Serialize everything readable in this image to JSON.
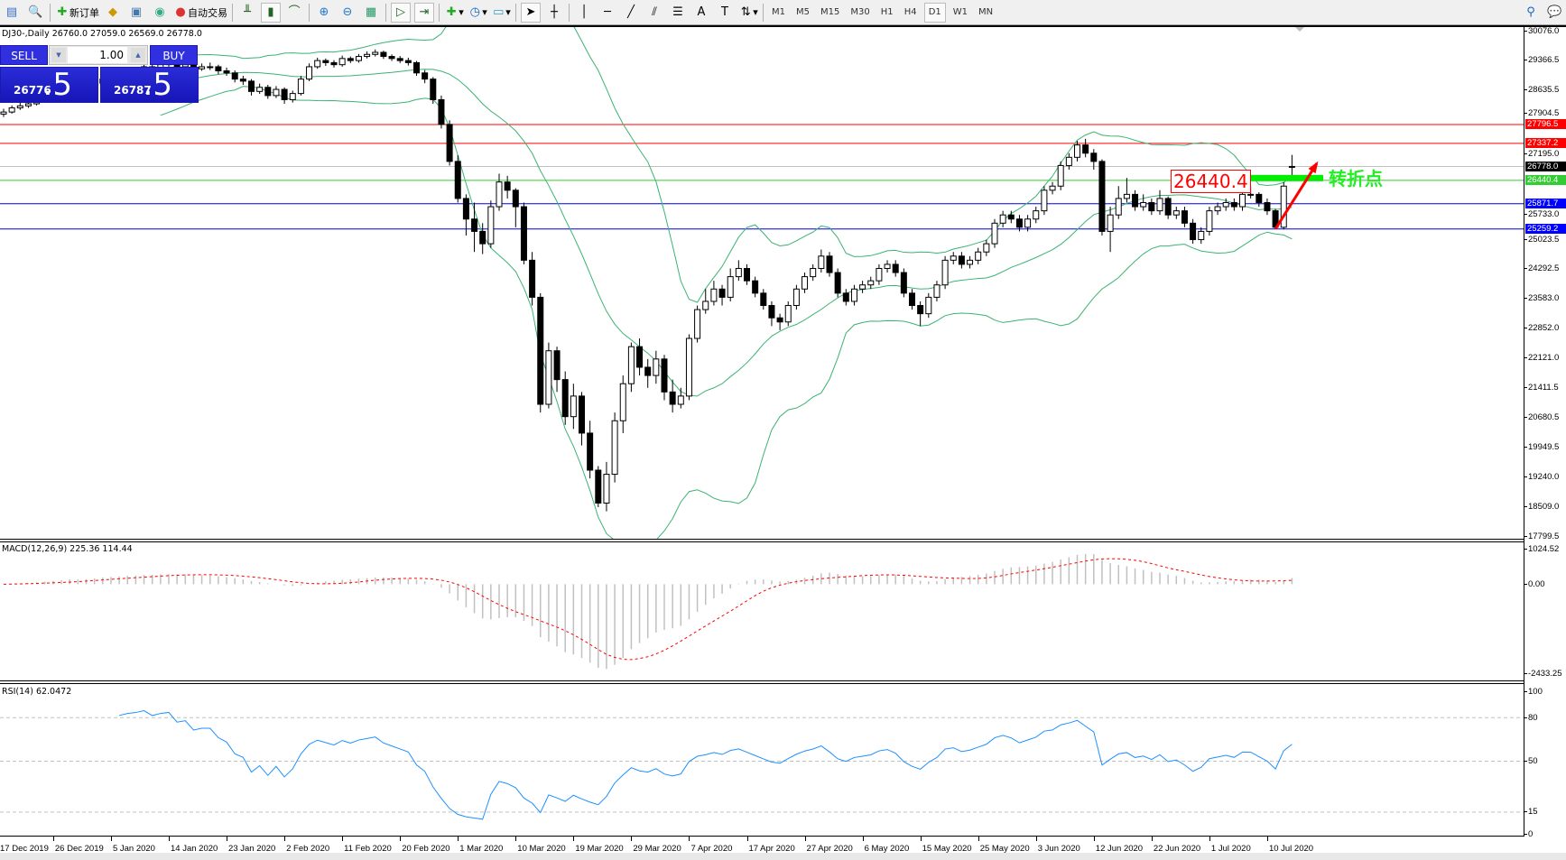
{
  "toolbar": {
    "new_order": "新订单",
    "auto_trading": "自动交易",
    "timeframes": [
      "M1",
      "M5",
      "M15",
      "M30",
      "H1",
      "H4",
      "D1",
      "W1",
      "MN"
    ],
    "active_timeframe": "D1"
  },
  "chart": {
    "title": "DJ30-,Daily  26760.0 27059.0 26569.0 26778.0",
    "one_click": {
      "sell_label": "SELL",
      "buy_label": "BUY",
      "lots": "1.00",
      "sell_price_main": "26776",
      "sell_price_frac": ".5",
      "buy_price_main": "26787",
      "buy_price_frac": ".5"
    },
    "annotation_price": "26440.4",
    "annotation_text": "转折点"
  },
  "colors": {
    "bollinger": "#3cb371",
    "resistance": "#ff0000",
    "support": "#0000dd",
    "pivot": "#33cc33",
    "bid": "#c0c0c0",
    "macd_hist": "#c0c0c0",
    "macd_signal": "#ff0000",
    "rsi": "#1e90ff",
    "arrow": "#ff0000",
    "pivot_bar": "#00ee00"
  },
  "chart_data": {
    "type": "candlestick",
    "symbol": "DJ30-",
    "period": "Daily",
    "ylim": [
      17799.5,
      30076.0
    ],
    "price_ticks": [
      "30076.0",
      "29366.5",
      "28635.5",
      "27904.5",
      "27195.0",
      "25733.0",
      "25023.5",
      "24292.5",
      "23583.0",
      "22852.0",
      "22121.0",
      "21411.5",
      "20680.5",
      "19949.5",
      "19240.0",
      "18509.0",
      "17799.5"
    ],
    "date_labels": [
      "17 Dec 2019",
      "26 Dec 2019",
      "5 Jan 2020",
      "14 Jan 2020",
      "23 Jan 2020",
      "2 Feb 2020",
      "11 Feb 2020",
      "20 Feb 2020",
      "1 Mar 2020",
      "10 Mar 2020",
      "19 Mar 2020",
      "29 Mar 2020",
      "7 Apr 2020",
      "17 Apr 2020",
      "27 Apr 2020",
      "6 May 2020",
      "15 May 2020",
      "25 May 2020",
      "3 Jun 2020",
      "12 Jun 2020",
      "22 Jun 2020",
      "1 Jul 2020",
      "10 Jul 2020"
    ],
    "hlines": [
      {
        "price": 27796.5,
        "label": "27796.5",
        "kind": "resistance"
      },
      {
        "price": 27337.2,
        "label": "27337.2",
        "kind": "resistance"
      },
      {
        "price": 26778.0,
        "label": "26778.0",
        "kind": "bid"
      },
      {
        "price": 26440.4,
        "label": "26440.4",
        "kind": "pivot"
      },
      {
        "price": 25871.7,
        "label": "25871.7",
        "kind": "support"
      },
      {
        "price": 25259.2,
        "label": "25259.2",
        "kind": "support"
      }
    ],
    "bollinger": {
      "period": 20,
      "deviation": 2
    },
    "arrow": {
      "from_bar": 154,
      "from_price": 25259.2,
      "to_bar": 159,
      "to_price": 26850
    },
    "ohlc": [
      [
        28050,
        28180,
        27980,
        28100
      ],
      [
        28100,
        28260,
        28060,
        28200
      ],
      [
        28200,
        28330,
        28150,
        28250
      ],
      [
        28250,
        28390,
        28200,
        28300
      ],
      [
        28300,
        28520,
        28260,
        28450
      ],
      [
        28450,
        28600,
        28400,
        28500
      ],
      [
        28500,
        28640,
        28430,
        28550
      ],
      [
        28550,
        28690,
        28480,
        28600
      ],
      [
        28600,
        28800,
        28560,
        28700
      ],
      [
        28700,
        28760,
        28420,
        28500
      ],
      [
        28500,
        28720,
        28440,
        28650
      ],
      [
        28650,
        28870,
        28600,
        28800
      ],
      [
        28800,
        28980,
        28740,
        28900
      ],
      [
        28900,
        29080,
        28850,
        29000
      ],
      [
        29000,
        29060,
        28880,
        28950
      ],
      [
        28950,
        29120,
        28900,
        29050
      ],
      [
        29050,
        29180,
        29000,
        29100
      ],
      [
        29100,
        29290,
        29060,
        29200
      ],
      [
        29200,
        29260,
        29080,
        29150
      ],
      [
        29150,
        29330,
        29100,
        29250
      ],
      [
        29250,
        29380,
        29200,
        29300
      ],
      [
        29300,
        29350,
        29130,
        29200
      ],
      [
        29200,
        29320,
        29150,
        29250
      ],
      [
        29250,
        29300,
        29080,
        29150
      ],
      [
        29150,
        29280,
        29100,
        29200
      ],
      [
        29200,
        29300,
        29120,
        29200
      ],
      [
        29200,
        29250,
        29020,
        29100
      ],
      [
        29100,
        29180,
        28980,
        29050
      ],
      [
        29050,
        29110,
        28820,
        28900
      ],
      [
        28900,
        28980,
        28760,
        28850
      ],
      [
        28850,
        28900,
        28500,
        28600
      ],
      [
        28600,
        28790,
        28540,
        28700
      ],
      [
        28700,
        28760,
        28420,
        28500
      ],
      [
        28500,
        28730,
        28440,
        28650
      ],
      [
        28650,
        28700,
        28300,
        28400
      ],
      [
        28400,
        28620,
        28330,
        28550
      ],
      [
        28550,
        28980,
        28500,
        28900
      ],
      [
        28900,
        29280,
        28850,
        29200
      ],
      [
        29200,
        29420,
        29150,
        29350
      ],
      [
        29350,
        29400,
        29220,
        29300
      ],
      [
        29300,
        29360,
        29180,
        29250
      ],
      [
        29250,
        29470,
        29200,
        29400
      ],
      [
        29400,
        29450,
        29290,
        29350
      ],
      [
        29350,
        29510,
        29300,
        29450
      ],
      [
        29450,
        29570,
        29400,
        29500
      ],
      [
        29500,
        29620,
        29450,
        29550
      ],
      [
        29550,
        29590,
        29390,
        29450
      ],
      [
        29450,
        29500,
        29340,
        29400
      ],
      [
        29400,
        29460,
        29290,
        29350
      ],
      [
        29350,
        29420,
        29230,
        29300
      ],
      [
        29300,
        29340,
        28980,
        29050
      ],
      [
        29050,
        29120,
        28800,
        28900
      ],
      [
        28900,
        28950,
        28300,
        28400
      ],
      [
        28400,
        28500,
        27700,
        27800
      ],
      [
        27800,
        27900,
        26800,
        26900
      ],
      [
        26900,
        27050,
        25900,
        26000
      ],
      [
        26000,
        26100,
        25100,
        25500
      ],
      [
        25500,
        25900,
        24700,
        25200
      ],
      [
        25200,
        25400,
        24650,
        24900
      ],
      [
        24900,
        25950,
        24800,
        25800
      ],
      [
        25800,
        26600,
        25700,
        26400
      ],
      [
        26400,
        26550,
        26000,
        26200
      ],
      [
        26200,
        26250,
        25300,
        25800
      ],
      [
        25800,
        25900,
        24400,
        24500
      ],
      [
        24500,
        24700,
        23400,
        23600
      ],
      [
        23600,
        23700,
        20800,
        21000
      ],
      [
        21000,
        22500,
        20900,
        22300
      ],
      [
        22300,
        22400,
        21300,
        21600
      ],
      [
        21600,
        21800,
        20500,
        20700
      ],
      [
        20700,
        21500,
        20400,
        21200
      ],
      [
        21200,
        21300,
        20000,
        20300
      ],
      [
        20300,
        20600,
        19200,
        19400
      ],
      [
        19400,
        19500,
        18500,
        18600
      ],
      [
        18600,
        19600,
        18400,
        19300
      ],
      [
        19300,
        20800,
        19100,
        20600
      ],
      [
        20600,
        21700,
        20300,
        21500
      ],
      [
        21500,
        22500,
        21300,
        22400
      ],
      [
        22400,
        22600,
        21700,
        21900
      ],
      [
        21900,
        22100,
        21400,
        21700
      ],
      [
        21700,
        22300,
        21500,
        22100
      ],
      [
        22100,
        22200,
        21100,
        21300
      ],
      [
        21300,
        21600,
        20800,
        21000
      ],
      [
        21000,
        21400,
        20900,
        21200
      ],
      [
        21200,
        22700,
        21100,
        22600
      ],
      [
        22600,
        23400,
        22500,
        23300
      ],
      [
        23300,
        23800,
        23200,
        23500
      ],
      [
        23500,
        24000,
        23400,
        23800
      ],
      [
        23800,
        23900,
        23400,
        23600
      ],
      [
        23600,
        24300,
        23500,
        24100
      ],
      [
        24100,
        24500,
        24000,
        24300
      ],
      [
        24300,
        24400,
        23900,
        24000
      ],
      [
        24000,
        24100,
        23600,
        23700
      ],
      [
        23700,
        23800,
        23300,
        23400
      ],
      [
        23400,
        23500,
        22900,
        23100
      ],
      [
        23100,
        23200,
        22800,
        23000
      ],
      [
        23000,
        23500,
        22900,
        23400
      ],
      [
        23400,
        23900,
        23300,
        23800
      ],
      [
        23800,
        24200,
        23700,
        24100
      ],
      [
        24100,
        24400,
        24000,
        24300
      ],
      [
        24300,
        24760,
        24200,
        24600
      ],
      [
        24600,
        24700,
        24100,
        24200
      ],
      [
        24200,
        24300,
        23600,
        23700
      ],
      [
        23700,
        23800,
        23400,
        23500
      ],
      [
        23500,
        23900,
        23400,
        23800
      ],
      [
        23800,
        24000,
        23700,
        23900
      ],
      [
        23900,
        24100,
        23800,
        24000
      ],
      [
        24000,
        24400,
        23900,
        24300
      ],
      [
        24300,
        24500,
        24200,
        24400
      ],
      [
        24400,
        24500,
        24100,
        24200
      ],
      [
        24200,
        24300,
        23600,
        23700
      ],
      [
        23700,
        23800,
        23300,
        23400
      ],
      [
        23400,
        23500,
        22900,
        23200
      ],
      [
        23200,
        23700,
        23100,
        23600
      ],
      [
        23600,
        24000,
        23500,
        23900
      ],
      [
        23900,
        24600,
        23800,
        24500
      ],
      [
        24500,
        24700,
        24400,
        24600
      ],
      [
        24600,
        24700,
        24300,
        24400
      ],
      [
        24400,
        24600,
        24300,
        24500
      ],
      [
        24500,
        24800,
        24400,
        24700
      ],
      [
        24700,
        25000,
        24600,
        24900
      ],
      [
        24900,
        25500,
        24800,
        25400
      ],
      [
        25400,
        25700,
        25300,
        25600
      ],
      [
        25600,
        25700,
        25400,
        25500
      ],
      [
        25500,
        25600,
        25200,
        25300
      ],
      [
        25300,
        25600,
        25200,
        25500
      ],
      [
        25500,
        25800,
        25400,
        25700
      ],
      [
        25700,
        26300,
        25600,
        26200
      ],
      [
        26200,
        26400,
        26100,
        26300
      ],
      [
        26300,
        26900,
        26200,
        26800
      ],
      [
        26800,
        27100,
        26700,
        27000
      ],
      [
        27000,
        27400,
        26900,
        27300
      ],
      [
        27300,
        27450,
        27000,
        27100
      ],
      [
        27100,
        27200,
        26700,
        26900
      ],
      [
        26900,
        26950,
        25100,
        25200
      ],
      [
        25200,
        25800,
        24700,
        25600
      ],
      [
        25600,
        26300,
        25500,
        26000
      ],
      [
        26000,
        26500,
        25900,
        26100
      ],
      [
        26100,
        26200,
        25700,
        25800
      ],
      [
        25800,
        26100,
        25700,
        25900
      ],
      [
        25900,
        26000,
        25600,
        25700
      ],
      [
        25700,
        26200,
        25600,
        26000
      ],
      [
        26000,
        26050,
        25500,
        25600
      ],
      [
        25600,
        25800,
        25500,
        25700
      ],
      [
        25700,
        25800,
        25300,
        25400
      ],
      [
        25400,
        25500,
        24900,
        25000
      ],
      [
        25000,
        25300,
        24900,
        25200
      ],
      [
        25200,
        25800,
        25100,
        25700
      ],
      [
        25700,
        25900,
        25600,
        25800
      ],
      [
        25800,
        26000,
        25700,
        25900
      ],
      [
        25900,
        26000,
        25700,
        25800
      ],
      [
        25800,
        26200,
        25700,
        26100
      ],
      [
        26100,
        26300,
        26000,
        26100
      ],
      [
        26100,
        26150,
        25800,
        25900
      ],
      [
        25900,
        26000,
        25600,
        25700
      ],
      [
        25700,
        25750,
        25259,
        25300
      ],
      [
        25300,
        26400,
        25250,
        26300
      ],
      [
        26760,
        27059,
        26569,
        26778
      ]
    ],
    "macd": {
      "title": "MACD(12,26,9) 225.36 114.44",
      "fast": 12,
      "slow": 26,
      "signal": 9,
      "ylim": [
        -2433.25,
        1024.52
      ],
      "ticks": [
        "1024.52",
        "0.00",
        "-2433.25"
      ]
    },
    "rsi": {
      "title": "RSI(14) 62.0472",
      "period": 14,
      "levels": [
        80,
        50,
        15
      ],
      "ticks": [
        "100",
        "80",
        "50",
        "15",
        "0"
      ]
    }
  }
}
